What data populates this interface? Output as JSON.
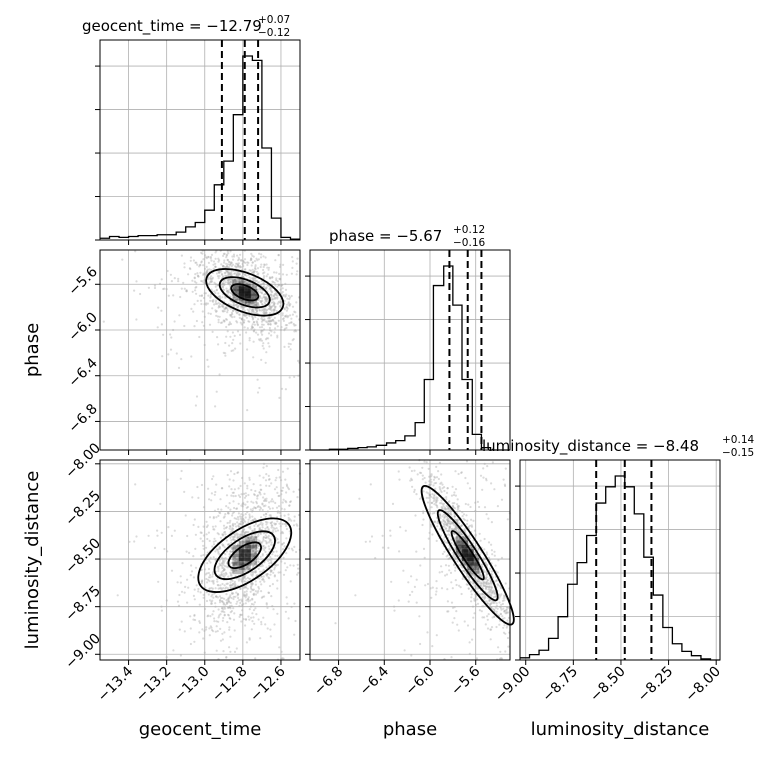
{
  "chart_data": {
    "type": "corner",
    "parameters": [
      "geocent_time",
      "phase",
      "luminosity_distance"
    ],
    "titles": [
      {
        "param": "geocent_time",
        "main": "geocent_time = −12.79",
        "plus": "+0.07",
        "minus": "−0.12"
      },
      {
        "param": "phase",
        "main": "phase = −5.67",
        "plus": "+0.12",
        "minus": "−0.16"
      },
      {
        "param": "luminosity_distance",
        "main": "luminosity_distance = −8.48",
        "plus": "+0.14",
        "minus": "−0.15"
      }
    ],
    "axis_labels": {
      "geocent_time": "geocent_time",
      "phase": "phase",
      "luminosity_distance": "luminosity_distance"
    },
    "ranges": {
      "geocent_time": [
        -13.55,
        -12.5
      ],
      "phase": [
        -7.05,
        -5.3
      ],
      "luminosity_distance": [
        -9.03,
        -7.98
      ]
    },
    "ticks": {
      "geocent_time": [
        "−13.4",
        "−13.2",
        "−13.0",
        "−12.8",
        "−12.6"
      ],
      "phase": [
        "−6.8",
        "−6.4",
        "−6.0",
        "−5.6"
      ],
      "luminosity_distance": [
        "−9.00",
        "−8.75",
        "−8.50",
        "−8.25",
        "−8.00"
      ]
    },
    "quantiles": {
      "geocent_time": [
        -12.91,
        -12.79,
        -12.72
      ],
      "phase": [
        -5.83,
        -5.67,
        -5.55
      ],
      "luminosity_distance": [
        -8.63,
        -8.48,
        -8.34
      ]
    },
    "marginals": {
      "geocent_time": {
        "bin_edges": [
          -13.55,
          -13.5,
          -13.45,
          -13.4,
          -13.35,
          -13.3,
          -13.25,
          -13.2,
          -13.15,
          -13.1,
          -13.05,
          -13.0,
          -12.95,
          -12.9,
          -12.85,
          -12.8,
          -12.75,
          -12.7,
          -12.65,
          -12.6,
          -12.55,
          -12.5
        ],
        "counts": [
          2,
          4,
          3,
          4,
          5,
          5,
          6,
          6,
          9,
          15,
          20,
          34,
          63,
          90,
          143,
          210,
          205,
          105,
          25,
          3,
          1
        ]
      },
      "phase": {
        "bin_edges": [
          -7.05,
          -6.97,
          -6.88,
          -6.8,
          -6.72,
          -6.63,
          -6.55,
          -6.47,
          -6.38,
          -6.3,
          -6.22,
          -6.13,
          -6.05,
          -5.97,
          -5.88,
          -5.8,
          -5.72,
          -5.63,
          -5.55,
          -5.47,
          -5.38,
          -5.3
        ],
        "counts": [
          0,
          0,
          1,
          1,
          2,
          3,
          4,
          6,
          9,
          12,
          18,
          35,
          90,
          210,
          235,
          185,
          90,
          20,
          3,
          0,
          0
        ]
      },
      "luminosity_distance": {
        "bin_edges": [
          -9.03,
          -8.98,
          -8.93,
          -8.88,
          -8.83,
          -8.78,
          -8.73,
          -8.68,
          -8.63,
          -8.58,
          -8.53,
          -8.48,
          -8.43,
          -8.38,
          -8.33,
          -8.28,
          -8.23,
          -8.18,
          -8.13,
          -8.08,
          -8.03,
          -7.98
        ],
        "counts": [
          2,
          5,
          9,
          20,
          40,
          70,
          90,
          115,
          145,
          160,
          170,
          160,
          135,
          95,
          60,
          30,
          15,
          8,
          4,
          1,
          0
        ]
      }
    },
    "gridlines": true,
    "line_color": "#000000",
    "scatter_color": "#b0b0b0",
    "density_color": "#000000"
  }
}
